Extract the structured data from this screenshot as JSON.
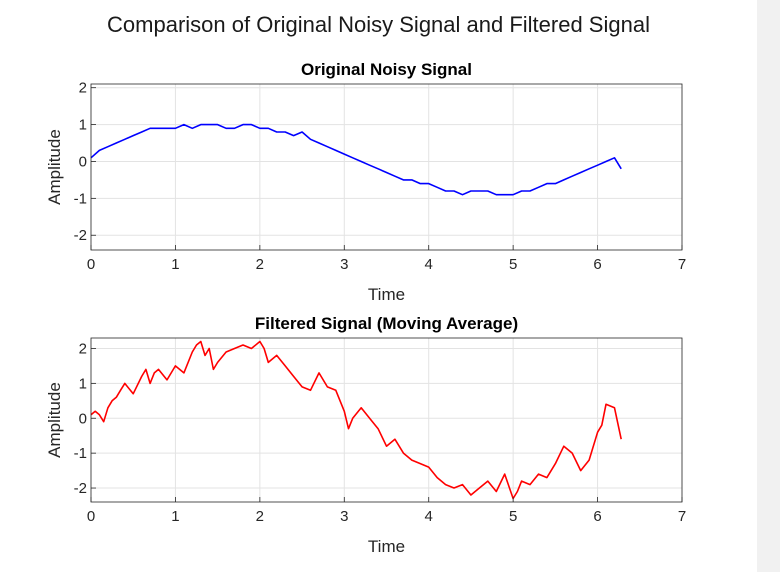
{
  "figure_title": "Comparison of Original Noisy Signal and Filtered Signal",
  "chart_data": [
    {
      "type": "line",
      "title": "Original Noisy Signal",
      "xlabel": "Time",
      "ylabel": "Amplitude",
      "xlim": [
        0,
        7
      ],
      "ylim": [
        -2.4,
        2.1
      ],
      "xticks": [
        0,
        1,
        2,
        3,
        4,
        5,
        6,
        7
      ],
      "yticks": [
        -2,
        -1,
        0,
        1,
        2
      ],
      "grid": true,
      "color": "#0000ff",
      "series": [
        {
          "x": [
            0,
            0.1,
            0.2,
            0.3,
            0.4,
            0.5,
            0.6,
            0.7,
            0.8,
            0.9,
            1.0,
            1.1,
            1.2,
            1.3,
            1.4,
            1.5,
            1.6,
            1.7,
            1.8,
            1.9,
            2.0,
            2.1,
            2.2,
            2.3,
            2.4,
            2.5,
            2.6,
            2.7,
            2.8,
            2.9,
            3.0,
            3.1,
            3.2,
            3.3,
            3.4,
            3.5,
            3.6,
            3.7,
            3.8,
            3.9,
            4.0,
            4.1,
            4.2,
            4.3,
            4.4,
            4.5,
            4.6,
            4.7,
            4.8,
            4.9,
            5.0,
            5.1,
            5.2,
            5.3,
            5.4,
            5.5,
            5.6,
            5.7,
            5.8,
            5.9,
            6.0,
            6.1,
            6.2,
            6.28
          ],
          "y": [
            0.1,
            0.3,
            0.4,
            0.5,
            0.6,
            0.7,
            0.8,
            0.9,
            0.9,
            0.9,
            0.9,
            1.0,
            0.9,
            1.0,
            1.0,
            1.0,
            0.9,
            0.9,
            1.0,
            1.0,
            0.9,
            0.9,
            0.8,
            0.8,
            0.7,
            0.8,
            0.6,
            0.5,
            0.4,
            0.3,
            0.2,
            0.1,
            0.0,
            -0.1,
            -0.2,
            -0.3,
            -0.4,
            -0.5,
            -0.5,
            -0.6,
            -0.6,
            -0.7,
            -0.8,
            -0.8,
            -0.9,
            -0.8,
            -0.8,
            -0.8,
            -0.9,
            -0.9,
            -0.9,
            -0.8,
            -0.8,
            -0.7,
            -0.6,
            -0.6,
            -0.5,
            -0.4,
            -0.3,
            -0.2,
            -0.1,
            0.0,
            0.1,
            -0.2
          ]
        }
      ]
    },
    {
      "type": "line",
      "title": "Filtered Signal (Moving Average)",
      "xlabel": "Time",
      "ylabel": "Amplitude",
      "xlim": [
        0,
        7
      ],
      "ylim": [
        -2.4,
        2.3
      ],
      "xticks": [
        0,
        1,
        2,
        3,
        4,
        5,
        6,
        7
      ],
      "yticks": [
        -2,
        -1,
        0,
        1,
        2
      ],
      "grid": true,
      "color": "#ff0000",
      "series": [
        {
          "x": [
            0,
            0.05,
            0.1,
            0.15,
            0.2,
            0.25,
            0.3,
            0.35,
            0.4,
            0.5,
            0.6,
            0.65,
            0.7,
            0.75,
            0.8,
            0.9,
            1.0,
            1.1,
            1.2,
            1.25,
            1.3,
            1.35,
            1.4,
            1.45,
            1.5,
            1.6,
            1.7,
            1.8,
            1.9,
            2.0,
            2.05,
            2.1,
            2.2,
            2.3,
            2.4,
            2.5,
            2.6,
            2.7,
            2.8,
            2.9,
            3.0,
            3.05,
            3.1,
            3.2,
            3.3,
            3.4,
            3.5,
            3.6,
            3.7,
            3.8,
            3.9,
            4.0,
            4.1,
            4.2,
            4.3,
            4.4,
            4.5,
            4.6,
            4.7,
            4.8,
            4.9,
            5.0,
            5.05,
            5.1,
            5.2,
            5.3,
            5.4,
            5.5,
            5.6,
            5.7,
            5.8,
            5.9,
            6.0,
            6.05,
            6.1,
            6.2,
            6.28
          ],
          "y": [
            0.1,
            0.2,
            0.1,
            -0.1,
            0.3,
            0.5,
            0.6,
            0.8,
            1.0,
            0.7,
            1.2,
            1.4,
            1.0,
            1.3,
            1.4,
            1.1,
            1.5,
            1.3,
            1.9,
            2.1,
            2.2,
            1.8,
            2.0,
            1.4,
            1.6,
            1.9,
            2.0,
            2.1,
            2.0,
            2.2,
            2.0,
            1.6,
            1.8,
            1.5,
            1.2,
            0.9,
            0.8,
            1.3,
            0.9,
            0.8,
            0.2,
            -0.3,
            0.0,
            0.3,
            0.0,
            -0.3,
            -0.8,
            -0.6,
            -1.0,
            -1.2,
            -1.3,
            -1.4,
            -1.7,
            -1.9,
            -2.0,
            -1.9,
            -2.2,
            -2.0,
            -1.8,
            -2.1,
            -1.6,
            -2.3,
            -2.1,
            -1.8,
            -1.9,
            -1.6,
            -1.7,
            -1.3,
            -0.8,
            -1.0,
            -1.5,
            -1.2,
            -0.4,
            -0.2,
            0.4,
            0.3,
            -0.6
          ]
        }
      ]
    }
  ]
}
